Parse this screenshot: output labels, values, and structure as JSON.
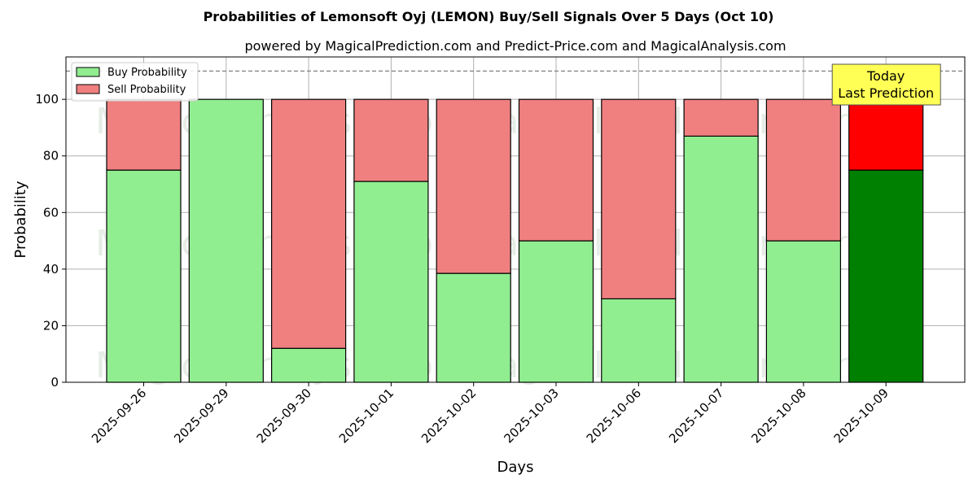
{
  "chart_data": {
    "type": "bar",
    "stacked": true,
    "title": "Probabilities of Lemonsoft Oyj (LEMON) Buy/Sell Signals Over 5 Days (Oct 10)",
    "subtitle": "powered by MagicalPrediction.com and Predict-Price.com and MagicalAnalysis.com",
    "xlabel": "Days",
    "ylabel": "Probability",
    "ylim": [
      0,
      115
    ],
    "yticks": [
      0,
      20,
      40,
      60,
      80,
      100
    ],
    "grid": true,
    "legend_position": "top-left",
    "reference_line": 110,
    "categories": [
      "2025-09-26",
      "2025-09-29",
      "2025-09-30",
      "2025-10-01",
      "2025-10-02",
      "2025-10-03",
      "2025-10-06",
      "2025-10-07",
      "2025-10-08",
      "2025-10-09"
    ],
    "series": [
      {
        "name": "Buy Probability",
        "color": "#90ee90",
        "highlight_color": "#008000",
        "values": [
          75,
          100,
          12,
          71,
          38.5,
          50,
          29.5,
          87,
          50,
          75
        ]
      },
      {
        "name": "Sell Probability",
        "color": "#f08080",
        "highlight_color": "#ff0000",
        "values": [
          25,
          0,
          88,
          29,
          61.5,
          50,
          70.5,
          13,
          50,
          25
        ]
      }
    ],
    "highlight_index": 9,
    "annotation": {
      "lines": [
        "Today",
        "Last Prediction"
      ],
      "background": "#ffff55"
    },
    "watermarks": [
      "MagicalAnalysis.com",
      "MagicalPrediction.com"
    ]
  }
}
